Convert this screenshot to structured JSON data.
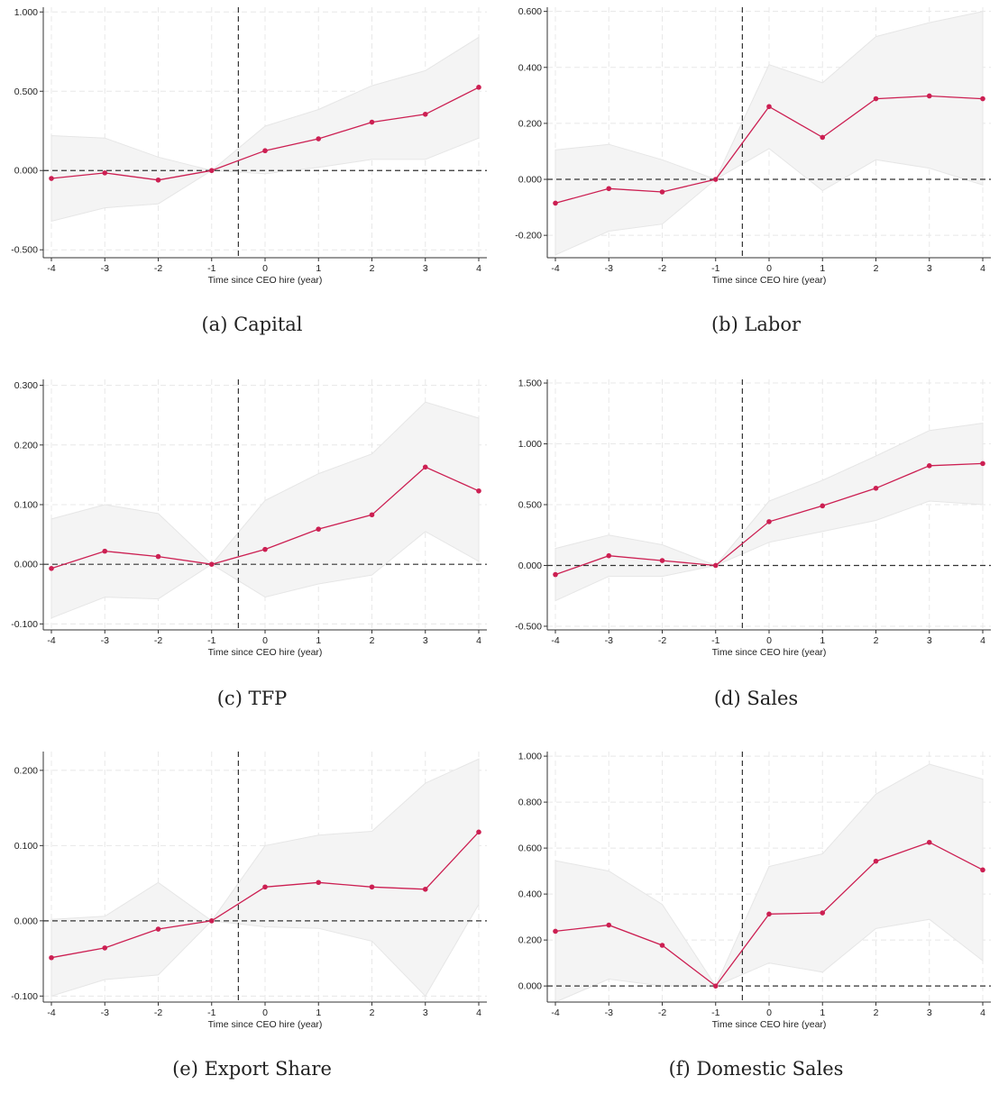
{
  "chart_data": [
    {
      "type": "line",
      "caption": "(a) Capital",
      "xlabel": "Time since CEO hire (year)",
      "x": [
        -4,
        -3,
        -2,
        -1,
        0,
        1,
        2,
        3,
        4
      ],
      "values": [
        -0.05,
        -0.015,
        -0.06,
        0.0,
        0.125,
        0.2,
        0.305,
        0.355,
        0.525
      ],
      "ci_low": [
        -0.32,
        -0.235,
        -0.21,
        0.0,
        -0.02,
        0.02,
        0.07,
        0.07,
        0.205
      ],
      "ci_high": [
        0.22,
        0.205,
        0.085,
        0.0,
        0.28,
        0.385,
        0.535,
        0.63,
        0.84
      ],
      "ylim": [
        -0.55,
        1.03
      ],
      "yticks": [
        -0.5,
        0.0,
        0.5,
        1.0
      ],
      "ytick_labels": [
        "-0.500",
        "0.000",
        "0.500",
        "1.000"
      ],
      "xticks": [
        -4,
        -3,
        -2,
        -1,
        0,
        1,
        2,
        3,
        4
      ],
      "xtick_labels": [
        "-4",
        "-3",
        "-2",
        "-1",
        "0",
        "1",
        "2",
        "3",
        "4"
      ],
      "vline": -0.5,
      "hline": 0,
      "grid": true
    },
    {
      "type": "line",
      "caption": "(b) Labor",
      "xlabel": "Time since CEO hire (year)",
      "x": [
        -4,
        -3,
        -2,
        -1,
        0,
        1,
        2,
        3,
        4
      ],
      "values": [
        -0.085,
        -0.033,
        -0.045,
        0.0,
        0.26,
        0.15,
        0.288,
        0.298,
        0.288
      ],
      "ci_low": [
        -0.27,
        -0.185,
        -0.16,
        0.0,
        0.11,
        -0.04,
        0.07,
        0.04,
        -0.02
      ],
      "ci_high": [
        0.105,
        0.125,
        0.07,
        0.0,
        0.41,
        0.345,
        0.51,
        0.56,
        0.6
      ],
      "ylim": [
        -0.28,
        0.615
      ],
      "yticks": [
        -0.2,
        0.0,
        0.2,
        0.4,
        0.6
      ],
      "ytick_labels": [
        "-0.200",
        "0.000",
        "0.200",
        "0.400",
        "0.600"
      ],
      "xticks": [
        -4,
        -3,
        -2,
        -1,
        0,
        1,
        2,
        3,
        4
      ],
      "xtick_labels": [
        "-4",
        "-3",
        "-2",
        "-1",
        "0",
        "1",
        "2",
        "3",
        "4"
      ],
      "vline": -0.5,
      "hline": 0,
      "grid": true
    },
    {
      "type": "line",
      "caption": "(c) TFP",
      "xlabel": "Time since CEO hire (year)",
      "x": [
        -4,
        -3,
        -2,
        -1,
        0,
        1,
        2,
        3,
        4
      ],
      "values": [
        -0.007,
        0.022,
        0.013,
        0.0,
        0.025,
        0.059,
        0.083,
        0.163,
        0.123
      ],
      "ci_low": [
        -0.09,
        -0.055,
        -0.058,
        0.0,
        -0.055,
        -0.033,
        -0.018,
        0.055,
        0.005
      ],
      "ci_high": [
        0.076,
        0.1,
        0.085,
        0.0,
        0.107,
        0.152,
        0.185,
        0.272,
        0.245
      ],
      "ylim": [
        -0.11,
        0.31
      ],
      "yticks": [
        -0.1,
        0.0,
        0.1,
        0.2,
        0.3
      ],
      "ytick_labels": [
        "-0.100",
        "0.000",
        "0.100",
        "0.200",
        "0.300"
      ],
      "xticks": [
        -4,
        -3,
        -2,
        -1,
        0,
        1,
        2,
        3,
        4
      ],
      "xtick_labels": [
        "-4",
        "-3",
        "-2",
        "-1",
        "0",
        "1",
        "2",
        "3",
        "4"
      ],
      "vline": -0.5,
      "hline": 0,
      "grid": true
    },
    {
      "type": "line",
      "caption": "(d) Sales",
      "xlabel": "Time since CEO hire (year)",
      "x": [
        -4,
        -3,
        -2,
        -1,
        0,
        1,
        2,
        3,
        4
      ],
      "values": [
        -0.075,
        0.08,
        0.04,
        0.0,
        0.36,
        0.49,
        0.635,
        0.82,
        0.838
      ],
      "ci_low": [
        -0.29,
        -0.09,
        -0.09,
        0.0,
        0.19,
        0.28,
        0.37,
        0.53,
        0.5
      ],
      "ci_high": [
        0.14,
        0.25,
        0.17,
        0.0,
        0.53,
        0.7,
        0.9,
        1.11,
        1.17
      ],
      "ylim": [
        -0.53,
        1.53
      ],
      "yticks": [
        -0.5,
        0.0,
        0.5,
        1.0,
        1.5
      ],
      "ytick_labels": [
        "-0.500",
        "0.000",
        "0.500",
        "1.000",
        "1.500"
      ],
      "xticks": [
        -4,
        -3,
        -2,
        -1,
        0,
        1,
        2,
        3,
        4
      ],
      "xtick_labels": [
        "-4",
        "-3",
        "-2",
        "-1",
        "0",
        "1",
        "2",
        "3",
        "4"
      ],
      "vline": -0.5,
      "hline": 0,
      "grid": true
    },
    {
      "type": "line",
      "caption": "(e) Export Share",
      "xlabel": "Time since CEO hire (year)",
      "x": [
        -4,
        -3,
        -2,
        -1,
        0,
        1,
        2,
        3,
        4
      ],
      "values": [
        -0.049,
        -0.036,
        -0.011,
        0.0,
        0.045,
        0.051,
        0.045,
        0.042,
        0.118
      ],
      "ci_low": [
        -0.1,
        -0.078,
        -0.072,
        0.0,
        -0.008,
        -0.01,
        -0.027,
        -0.1,
        0.022
      ],
      "ci_high": [
        0.002,
        0.006,
        0.051,
        0.0,
        0.1,
        0.114,
        0.119,
        0.183,
        0.215
      ],
      "ylim": [
        -0.108,
        0.225
      ],
      "yticks": [
        -0.1,
        0.0,
        0.1,
        0.2
      ],
      "ytick_labels": [
        "-0.100",
        "0.000",
        "0.100",
        "0.200"
      ],
      "xticks": [
        -4,
        -3,
        -2,
        -1,
        0,
        1,
        2,
        3,
        4
      ],
      "xtick_labels": [
        "-4",
        "-3",
        "-2",
        "-1",
        "0",
        "1",
        "2",
        "3",
        "4"
      ],
      "vline": -0.5,
      "hline": 0,
      "grid": true
    },
    {
      "type": "line",
      "caption": "(f) Domestic Sales",
      "xlabel": "Time since CEO hire (year)",
      "x": [
        -4,
        -3,
        -2,
        -1,
        0,
        1,
        2,
        3,
        4
      ],
      "values": [
        0.238,
        0.265,
        0.177,
        0.0,
        0.313,
        0.318,
        0.543,
        0.625,
        0.505
      ],
      "ci_low": [
        -0.07,
        0.03,
        0.0,
        0.0,
        0.1,
        0.06,
        0.25,
        0.29,
        0.11
      ],
      "ci_high": [
        0.545,
        0.5,
        0.355,
        0.0,
        0.52,
        0.575,
        0.835,
        0.965,
        0.9
      ],
      "ylim": [
        -0.07,
        1.02
      ],
      "yticks": [
        0.0,
        0.2,
        0.4,
        0.6,
        0.8,
        1.0
      ],
      "ytick_labels": [
        "0.000",
        "0.200",
        "0.400",
        "0.600",
        "0.800",
        "1.000"
      ],
      "xticks": [
        -4,
        -3,
        -2,
        -1,
        0,
        1,
        2,
        3,
        4
      ],
      "xtick_labels": [
        "-4",
        "-3",
        "-2",
        "-1",
        "0",
        "1",
        "2",
        "3",
        "4"
      ],
      "vline": -0.5,
      "hline": 0,
      "grid": true
    }
  ],
  "colors": {
    "line": "#cc1f52",
    "ci_fill": "#f4f4f4",
    "ci_edge": "#e6e6e6",
    "grid": "#e8e8e8",
    "refline": "#333333",
    "axis": "#333333"
  }
}
